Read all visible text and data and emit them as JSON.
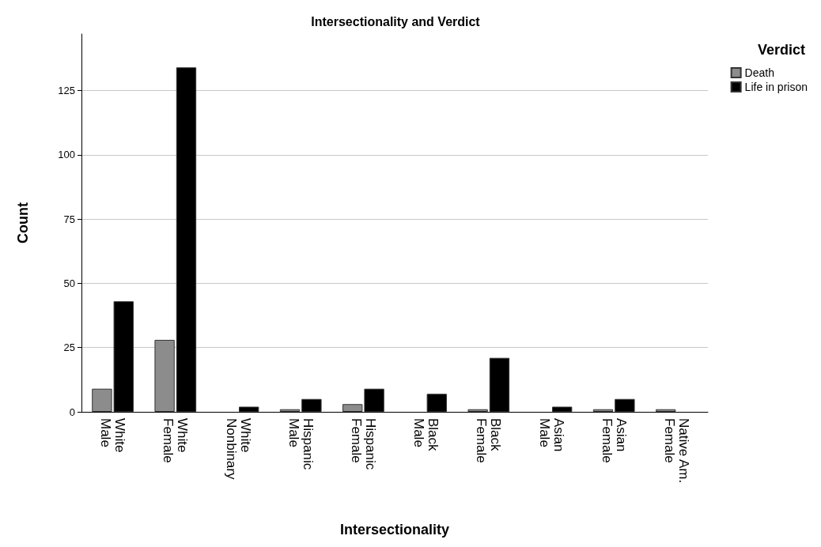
{
  "chart_data": {
    "type": "bar",
    "title": "Intersectionality and Verdict",
    "xlabel": "Intersectionality",
    "ylabel": "Count",
    "legend_title": "Verdict",
    "categories": [
      "White Male",
      "White Female",
      "White Nonbinary",
      "Hispanic Male",
      "Hispanic Female",
      "Black Male",
      "Black Female",
      "Asian Male",
      "Asian Female",
      "Native Am. Female"
    ],
    "series": [
      {
        "name": "Death",
        "color": "#8c8c8c",
        "values": [
          9,
          28,
          0,
          1,
          3,
          0,
          1,
          0,
          1,
          1
        ]
      },
      {
        "name": "Life in prison",
        "color": "#000000",
        "values": [
          43,
          134,
          2,
          5,
          9,
          7,
          21,
          2,
          5,
          0
        ]
      }
    ],
    "ylim": [
      0,
      147
    ],
    "yticks": [
      0,
      25,
      50,
      75,
      100,
      125
    ],
    "grid": "y",
    "legend": "top right"
  }
}
